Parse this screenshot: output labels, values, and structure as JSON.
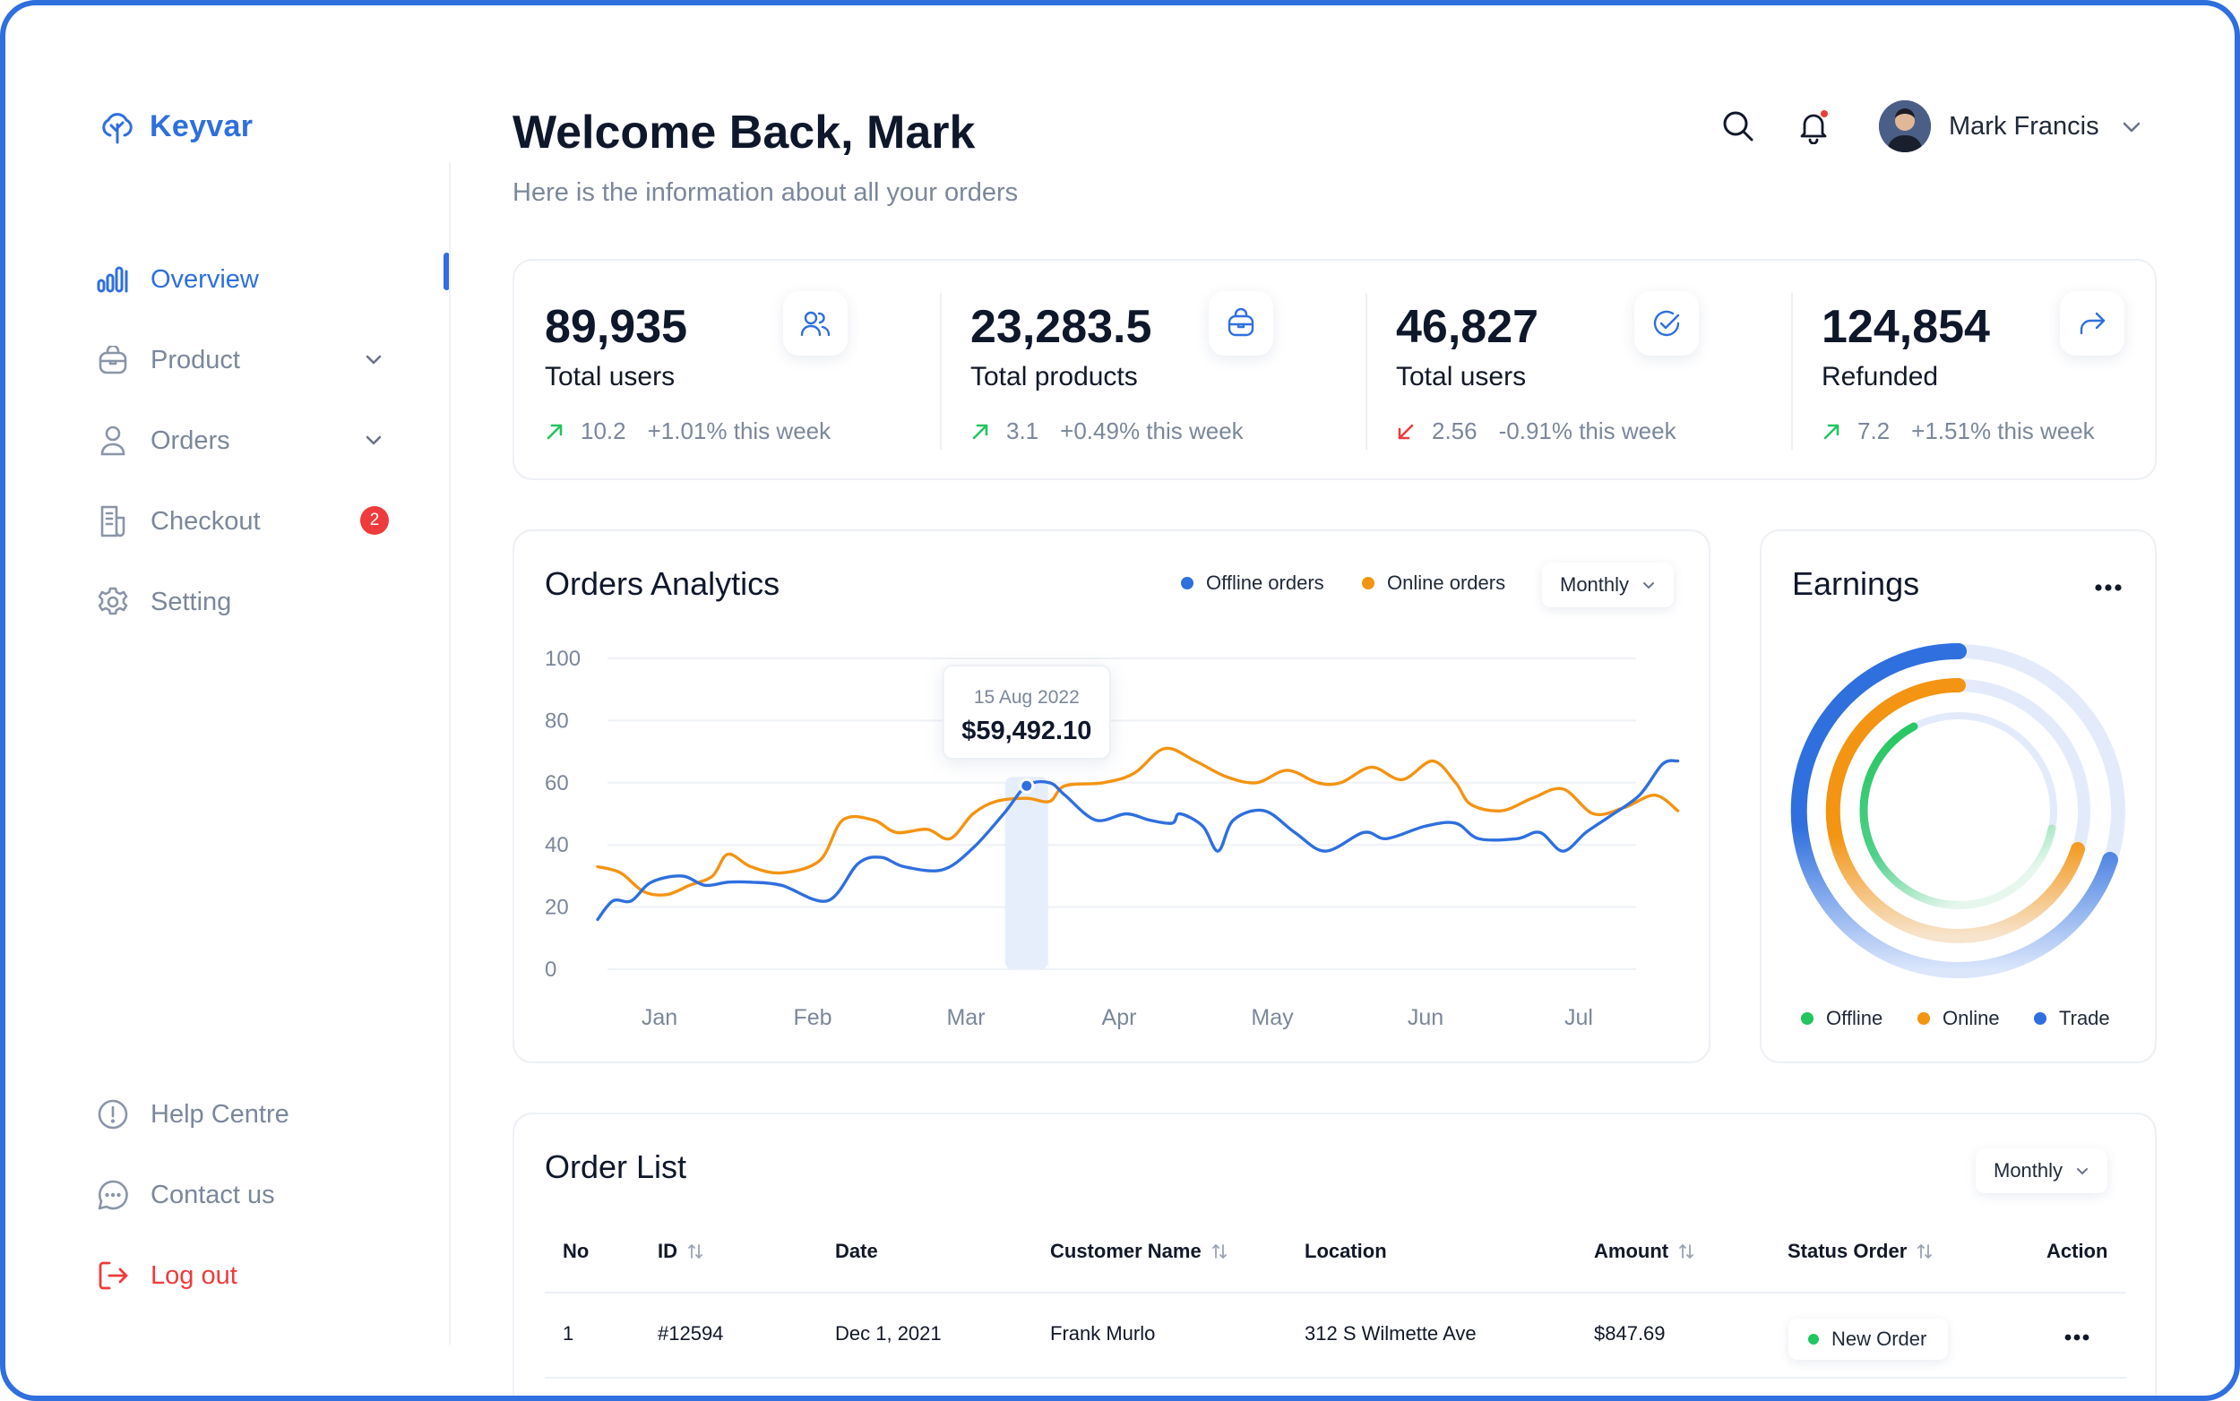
{
  "app": {
    "name": "Keyvar",
    "accent": "#2f6fde"
  },
  "sidebar": {
    "items": [
      {
        "label": "Overview",
        "icon": "bar-chart-icon",
        "active": true
      },
      {
        "label": "Product",
        "icon": "bag-icon",
        "has_submenu": true
      },
      {
        "label": "Orders",
        "icon": "user-icon",
        "has_submenu": true
      },
      {
        "label": "Checkout",
        "icon": "receipt-icon",
        "badge": "2"
      },
      {
        "label": "Setting",
        "icon": "gear-icon"
      }
    ],
    "footer": [
      {
        "label": "Help Centre",
        "icon": "info-icon"
      },
      {
        "label": "Contact us",
        "icon": "chat-icon"
      },
      {
        "label": "Log out",
        "icon": "logout-icon"
      }
    ]
  },
  "header": {
    "title": "Welcome Back, Mark",
    "subtitle": "Here is the information about all your orders",
    "user_name": "Mark Francis"
  },
  "stats": [
    {
      "value": "89,935",
      "label": "Total users",
      "delta": "10.2",
      "pct": "+1.01% this week",
      "trend": "up",
      "icon": "users-icon"
    },
    {
      "value": "23,283.5",
      "label": "Total products",
      "delta": "3.1",
      "pct": "+0.49% this week",
      "trend": "up",
      "icon": "bag-icon"
    },
    {
      "value": "46,827",
      "label": "Total users",
      "delta": "2.56",
      "pct": "-0.91% this week",
      "trend": "down",
      "icon": "check-circle-icon"
    },
    {
      "value": "124,854",
      "label": "Refunded",
      "delta": "7.2",
      "pct": "+1.51% this week",
      "trend": "up",
      "icon": "share-icon"
    }
  ],
  "analytics": {
    "title": "Orders Analytics",
    "legend_offline": "Offline orders",
    "legend_online": "Online orders",
    "period": "Monthly",
    "tooltip_date": "15 Aug 2022",
    "tooltip_value": "$59,492.10"
  },
  "chart_data": {
    "type": "line",
    "x_labels": [
      "Jan",
      "Feb",
      "Mar",
      "Apr",
      "May",
      "Jun",
      "Jul"
    ],
    "ylim": [
      0,
      100
    ],
    "y_ticks": [
      100,
      80,
      60,
      40,
      20,
      0
    ],
    "grid": true,
    "legend_position": "top-right",
    "colors": {
      "offline": "#2f6fde",
      "online": "#f39412"
    },
    "series": [
      {
        "name": "Offline orders",
        "color": "#2f6fde",
        "points": [
          [
            0.0,
            16
          ],
          [
            0.1,
            22
          ],
          [
            0.22,
            22
          ],
          [
            0.35,
            28
          ],
          [
            0.55,
            30
          ],
          [
            0.7,
            27
          ],
          [
            0.85,
            28
          ],
          [
            1.0,
            28
          ],
          [
            1.2,
            27
          ],
          [
            1.5,
            22
          ],
          [
            1.7,
            34
          ],
          [
            1.85,
            36
          ],
          [
            2.0,
            33
          ],
          [
            2.25,
            32
          ],
          [
            2.45,
            39
          ],
          [
            2.65,
            50
          ],
          [
            2.8,
            59
          ],
          [
            2.95,
            60
          ],
          [
            3.05,
            56
          ],
          [
            3.25,
            48
          ],
          [
            3.45,
            50
          ],
          [
            3.6,
            48
          ],
          [
            3.75,
            47
          ],
          [
            3.8,
            50
          ],
          [
            3.95,
            46
          ],
          [
            4.05,
            38
          ],
          [
            4.15,
            48
          ],
          [
            4.35,
            51
          ],
          [
            4.55,
            44
          ],
          [
            4.75,
            38
          ],
          [
            5.0,
            44
          ],
          [
            5.15,
            42
          ],
          [
            5.4,
            46
          ],
          [
            5.6,
            47
          ],
          [
            5.75,
            42
          ],
          [
            6.0,
            42
          ],
          [
            6.15,
            44
          ],
          [
            6.3,
            38
          ],
          [
            6.45,
            44
          ],
          [
            6.6,
            49
          ],
          [
            6.8,
            56
          ],
          [
            6.95,
            66
          ],
          [
            7.05,
            67
          ]
        ]
      },
      {
        "name": "Online orders",
        "color": "#f39412",
        "points": [
          [
            0.0,
            33
          ],
          [
            0.15,
            31
          ],
          [
            0.3,
            25
          ],
          [
            0.45,
            24
          ],
          [
            0.6,
            27
          ],
          [
            0.75,
            30
          ],
          [
            0.85,
            37
          ],
          [
            1.0,
            33
          ],
          [
            1.2,
            31
          ],
          [
            1.45,
            35
          ],
          [
            1.6,
            48
          ],
          [
            1.8,
            48
          ],
          [
            1.95,
            44
          ],
          [
            2.15,
            45
          ],
          [
            2.3,
            42
          ],
          [
            2.45,
            50
          ],
          [
            2.6,
            54
          ],
          [
            2.8,
            55
          ],
          [
            2.95,
            54
          ],
          [
            3.05,
            59
          ],
          [
            3.3,
            60
          ],
          [
            3.5,
            63
          ],
          [
            3.7,
            71
          ],
          [
            3.9,
            67
          ],
          [
            4.1,
            62
          ],
          [
            4.3,
            60
          ],
          [
            4.5,
            64
          ],
          [
            4.7,
            60
          ],
          [
            4.85,
            60
          ],
          [
            5.05,
            65
          ],
          [
            5.25,
            61
          ],
          [
            5.45,
            67
          ],
          [
            5.6,
            60
          ],
          [
            5.7,
            53
          ],
          [
            5.9,
            51
          ],
          [
            6.1,
            55
          ],
          [
            6.3,
            58
          ],
          [
            6.5,
            50
          ],
          [
            6.7,
            52
          ],
          [
            6.9,
            56
          ],
          [
            7.05,
            51
          ]
        ]
      }
    ],
    "highlight": {
      "x": 2.8,
      "value": 59,
      "date": "15 Aug 2022",
      "label": "$59,492.10"
    }
  },
  "earnings": {
    "title": "Earnings",
    "rings": [
      {
        "name": "Trade",
        "color": "#2f6fde"
      },
      {
        "name": "Online",
        "color": "#f39412"
      },
      {
        "name": "Offline",
        "color": "#22c55e"
      }
    ],
    "legend": [
      {
        "label": "Offline",
        "color": "#22c55e"
      },
      {
        "label": "Online",
        "color": "#f39412"
      },
      {
        "label": "Trade",
        "color": "#2f6fde"
      }
    ]
  },
  "orders": {
    "title": "Order List",
    "period": "Monthly",
    "columns": {
      "no": "No",
      "id": "ID",
      "date": "Date",
      "customer": "Customer Name",
      "location": "Location",
      "amount": "Amount",
      "status": "Status Order",
      "action": "Action"
    },
    "rows": [
      {
        "no": "1",
        "id": "#12594",
        "date": "Dec 1, 2021",
        "customer": "Frank Murlo",
        "location": "312 S Wilmette Ave",
        "amount": "$847.69",
        "status": "New Order"
      }
    ]
  }
}
